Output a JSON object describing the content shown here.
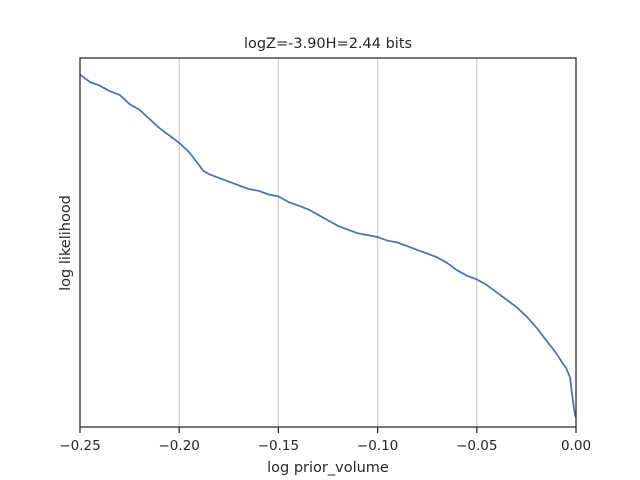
{
  "chart_data": {
    "type": "line",
    "title": "logZ=-3.90H=2.44 bits",
    "xlabel": "log prior_volume",
    "ylabel": "log likelihood",
    "xlim": [
      -0.25,
      0.0
    ],
    "ylim": [
      0,
      1
    ],
    "x_ticks": [
      -0.25,
      -0.2,
      -0.15,
      -0.1,
      -0.05,
      0.0
    ],
    "x_tick_labels": [
      "−0.25",
      "−0.20",
      "−0.15",
      "−0.10",
      "−0.05",
      "0.00"
    ],
    "y_ticks_shown": false,
    "grid": "vertical",
    "series": [
      {
        "color": "#4c72b0",
        "x": [
          -0.25,
          -0.245,
          -0.24,
          -0.235,
          -0.23,
          -0.225,
          -0.22,
          -0.215,
          -0.21,
          -0.205,
          -0.2,
          -0.195,
          -0.19,
          -0.188,
          -0.185,
          -0.18,
          -0.175,
          -0.17,
          -0.165,
          -0.16,
          -0.155,
          -0.15,
          -0.145,
          -0.14,
          -0.135,
          -0.13,
          -0.125,
          -0.12,
          -0.115,
          -0.11,
          -0.105,
          -0.1,
          -0.095,
          -0.09,
          -0.085,
          -0.08,
          -0.075,
          -0.07,
          -0.065,
          -0.06,
          -0.055,
          -0.05,
          -0.045,
          -0.04,
          -0.035,
          -0.03,
          -0.025,
          -0.02,
          -0.015,
          -0.01,
          -0.007,
          -0.005,
          -0.003,
          -0.002,
          -0.001,
          -0.0005,
          0.0
        ],
        "y": [
          0.955,
          0.935,
          0.925,
          0.91,
          0.9,
          0.875,
          0.86,
          0.835,
          0.81,
          0.79,
          0.77,
          0.745,
          0.71,
          0.695,
          0.685,
          0.675,
          0.665,
          0.655,
          0.645,
          0.64,
          0.63,
          0.625,
          0.61,
          0.6,
          0.59,
          0.575,
          0.56,
          0.545,
          0.535,
          0.525,
          0.52,
          0.515,
          0.505,
          0.5,
          0.49,
          0.48,
          0.47,
          0.46,
          0.445,
          0.425,
          0.41,
          0.4,
          0.385,
          0.365,
          0.345,
          0.325,
          0.3,
          0.27,
          0.235,
          0.2,
          0.175,
          0.16,
          0.135,
          0.09,
          0.05,
          0.035,
          0.025
        ]
      }
    ]
  }
}
